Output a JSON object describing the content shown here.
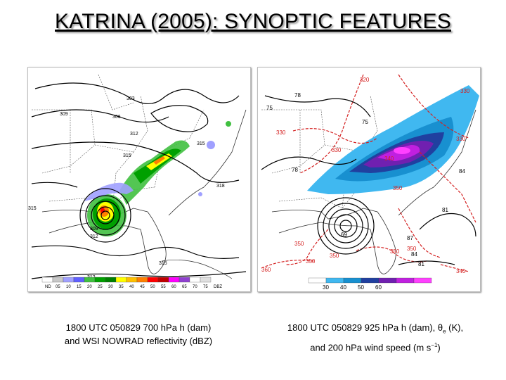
{
  "slide": {
    "title": "KATRINA (2005):  SYNOPTIC FEATURES"
  },
  "left_panel": {
    "caption_line1": "1800 UTC 050829 700 hPa h (dam)",
    "caption_line2": "and WSI NOWRAD reflectivity (dBZ)",
    "colorbar_labels": [
      "ND",
      "05",
      "10",
      "15",
      "20",
      "25",
      "30",
      "35",
      "40",
      "45",
      "50",
      "55",
      "60",
      "65",
      "70",
      "75",
      "DBZ"
    ],
    "colorbar_colors": [
      "#ffffff",
      "#c8c8c8",
      "#a0a0ff",
      "#6060ff",
      "#40c040",
      "#00a000",
      "#008000",
      "#ffff00",
      "#ffc000",
      "#ff8000",
      "#ff0000",
      "#c00000",
      "#ff00ff",
      "#9040d0",
      "#ffffff",
      "#e0e0e0"
    ],
    "contour_labels": [
      "303",
      "309",
      "306",
      "312",
      "315",
      "318",
      "315",
      "309",
      "312",
      "315",
      "312",
      "315",
      "306"
    ]
  },
  "right_panel": {
    "caption_line1_a": "1800 UTC 050829 925 hPa h (dam), θ",
    "caption_line1_sub": "e",
    "caption_line1_b": " (K),",
    "caption_line2_a": "and 200 hPa wind speed (m s",
    "caption_line2_sup": "−1",
    "caption_line2_b": ")",
    "colorbar_labels": [
      "30",
      "40",
      "50",
      "60"
    ],
    "colorbar_colors": [
      "#ffffff",
      "#40b8f0",
      "#1890d0",
      "#2040a0",
      "#7020b0",
      "#c020e0",
      "#ff40ff"
    ],
    "theta_labels": [
      "320",
      "330",
      "330",
      "330",
      "330",
      "330",
      "340",
      "340",
      "350",
      "350",
      "350",
      "350",
      "350",
      "350",
      "360",
      "340"
    ],
    "height_labels": [
      "78",
      "75",
      "75",
      "78",
      "84",
      "81",
      "87",
      "69",
      "81",
      "84"
    ]
  }
}
